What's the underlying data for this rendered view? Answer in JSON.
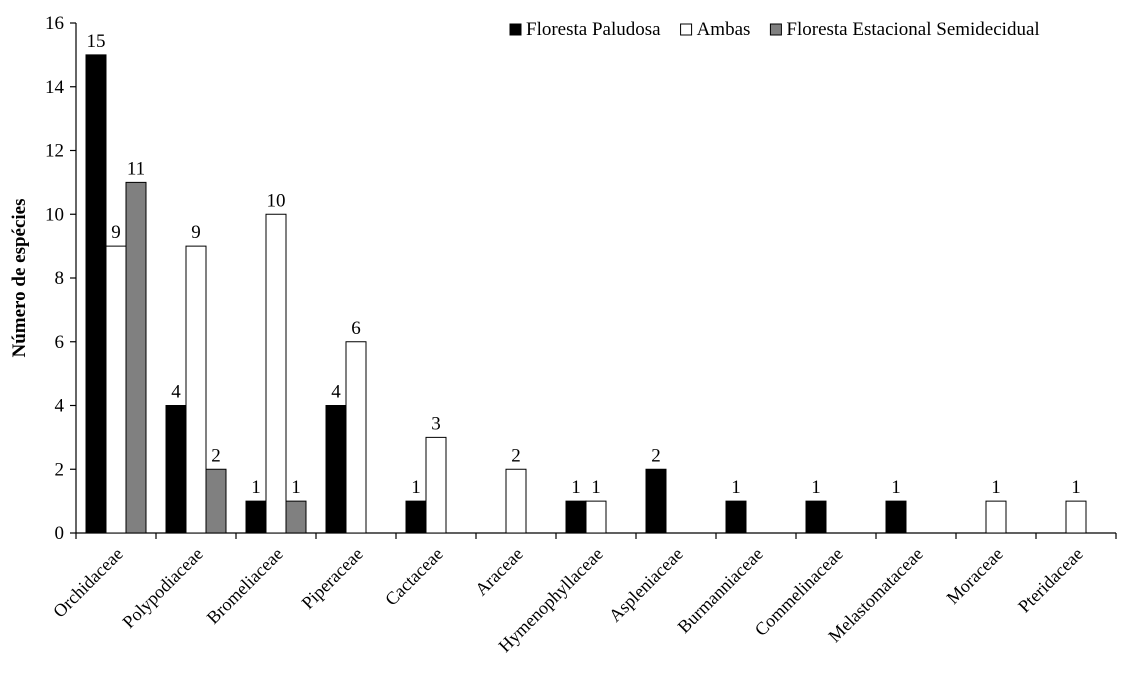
{
  "chart_data": {
    "type": "bar",
    "title": "",
    "xlabel": "",
    "ylabel": "Número de espécies",
    "ylim": [
      0,
      16
    ],
    "yticks": [
      0,
      2,
      4,
      6,
      8,
      10,
      12,
      14,
      16
    ],
    "grid": false,
    "legend_position": "top-right",
    "categories": [
      "Orchidaceae",
      "Polypodiaceae",
      "Bromeliaceae",
      "Piperaceae",
      "Cactaceae",
      "Araceae",
      "Hymenophyllaceae",
      "Aspleniaceae",
      "Burmanniaceae",
      "Commelinaceae",
      "Melastomataceae",
      "Moraceae",
      "Pteridaceae"
    ],
    "series": [
      {
        "name": "Floresta Paludosa",
        "color": "#000000",
        "values": [
          15,
          4,
          1,
          4,
          1,
          null,
          1,
          2,
          1,
          1,
          1,
          null,
          null
        ]
      },
      {
        "name": "Ambas",
        "color": "#ffffff",
        "values": [
          9,
          9,
          10,
          6,
          3,
          2,
          1,
          null,
          null,
          null,
          null,
          1,
          1
        ]
      },
      {
        "name": "Floresta Estacional Semidecidual",
        "color": "#808080",
        "values": [
          11,
          2,
          1,
          null,
          null,
          null,
          null,
          null,
          null,
          null,
          null,
          null,
          null
        ]
      }
    ]
  }
}
